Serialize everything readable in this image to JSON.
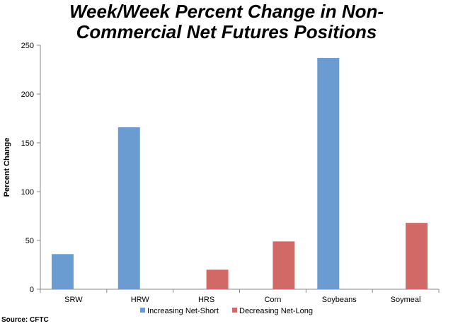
{
  "chart_data": {
    "type": "bar",
    "title_lines": [
      "Week/Week Percent Change in Non-",
      "Commercial Net Futures Positions"
    ],
    "ylabel": "Percent Change",
    "ylim": [
      0,
      250
    ],
    "yticks": [
      0,
      50,
      100,
      150,
      200,
      250
    ],
    "categories": [
      "SRW",
      "HRW",
      "HRS",
      "Corn",
      "Soybeans",
      "Soymeal"
    ],
    "series": [
      {
        "name": "Increasing Net-Short",
        "color": "#6a9bd1",
        "values": [
          36,
          166,
          null,
          null,
          237,
          null
        ]
      },
      {
        "name": "Decreasing Net-Long",
        "color": "#d16a66",
        "values": [
          null,
          null,
          20,
          49,
          null,
          68
        ]
      }
    ],
    "grid": false,
    "legend_position": "bottom",
    "source": "Source: CFTC"
  }
}
